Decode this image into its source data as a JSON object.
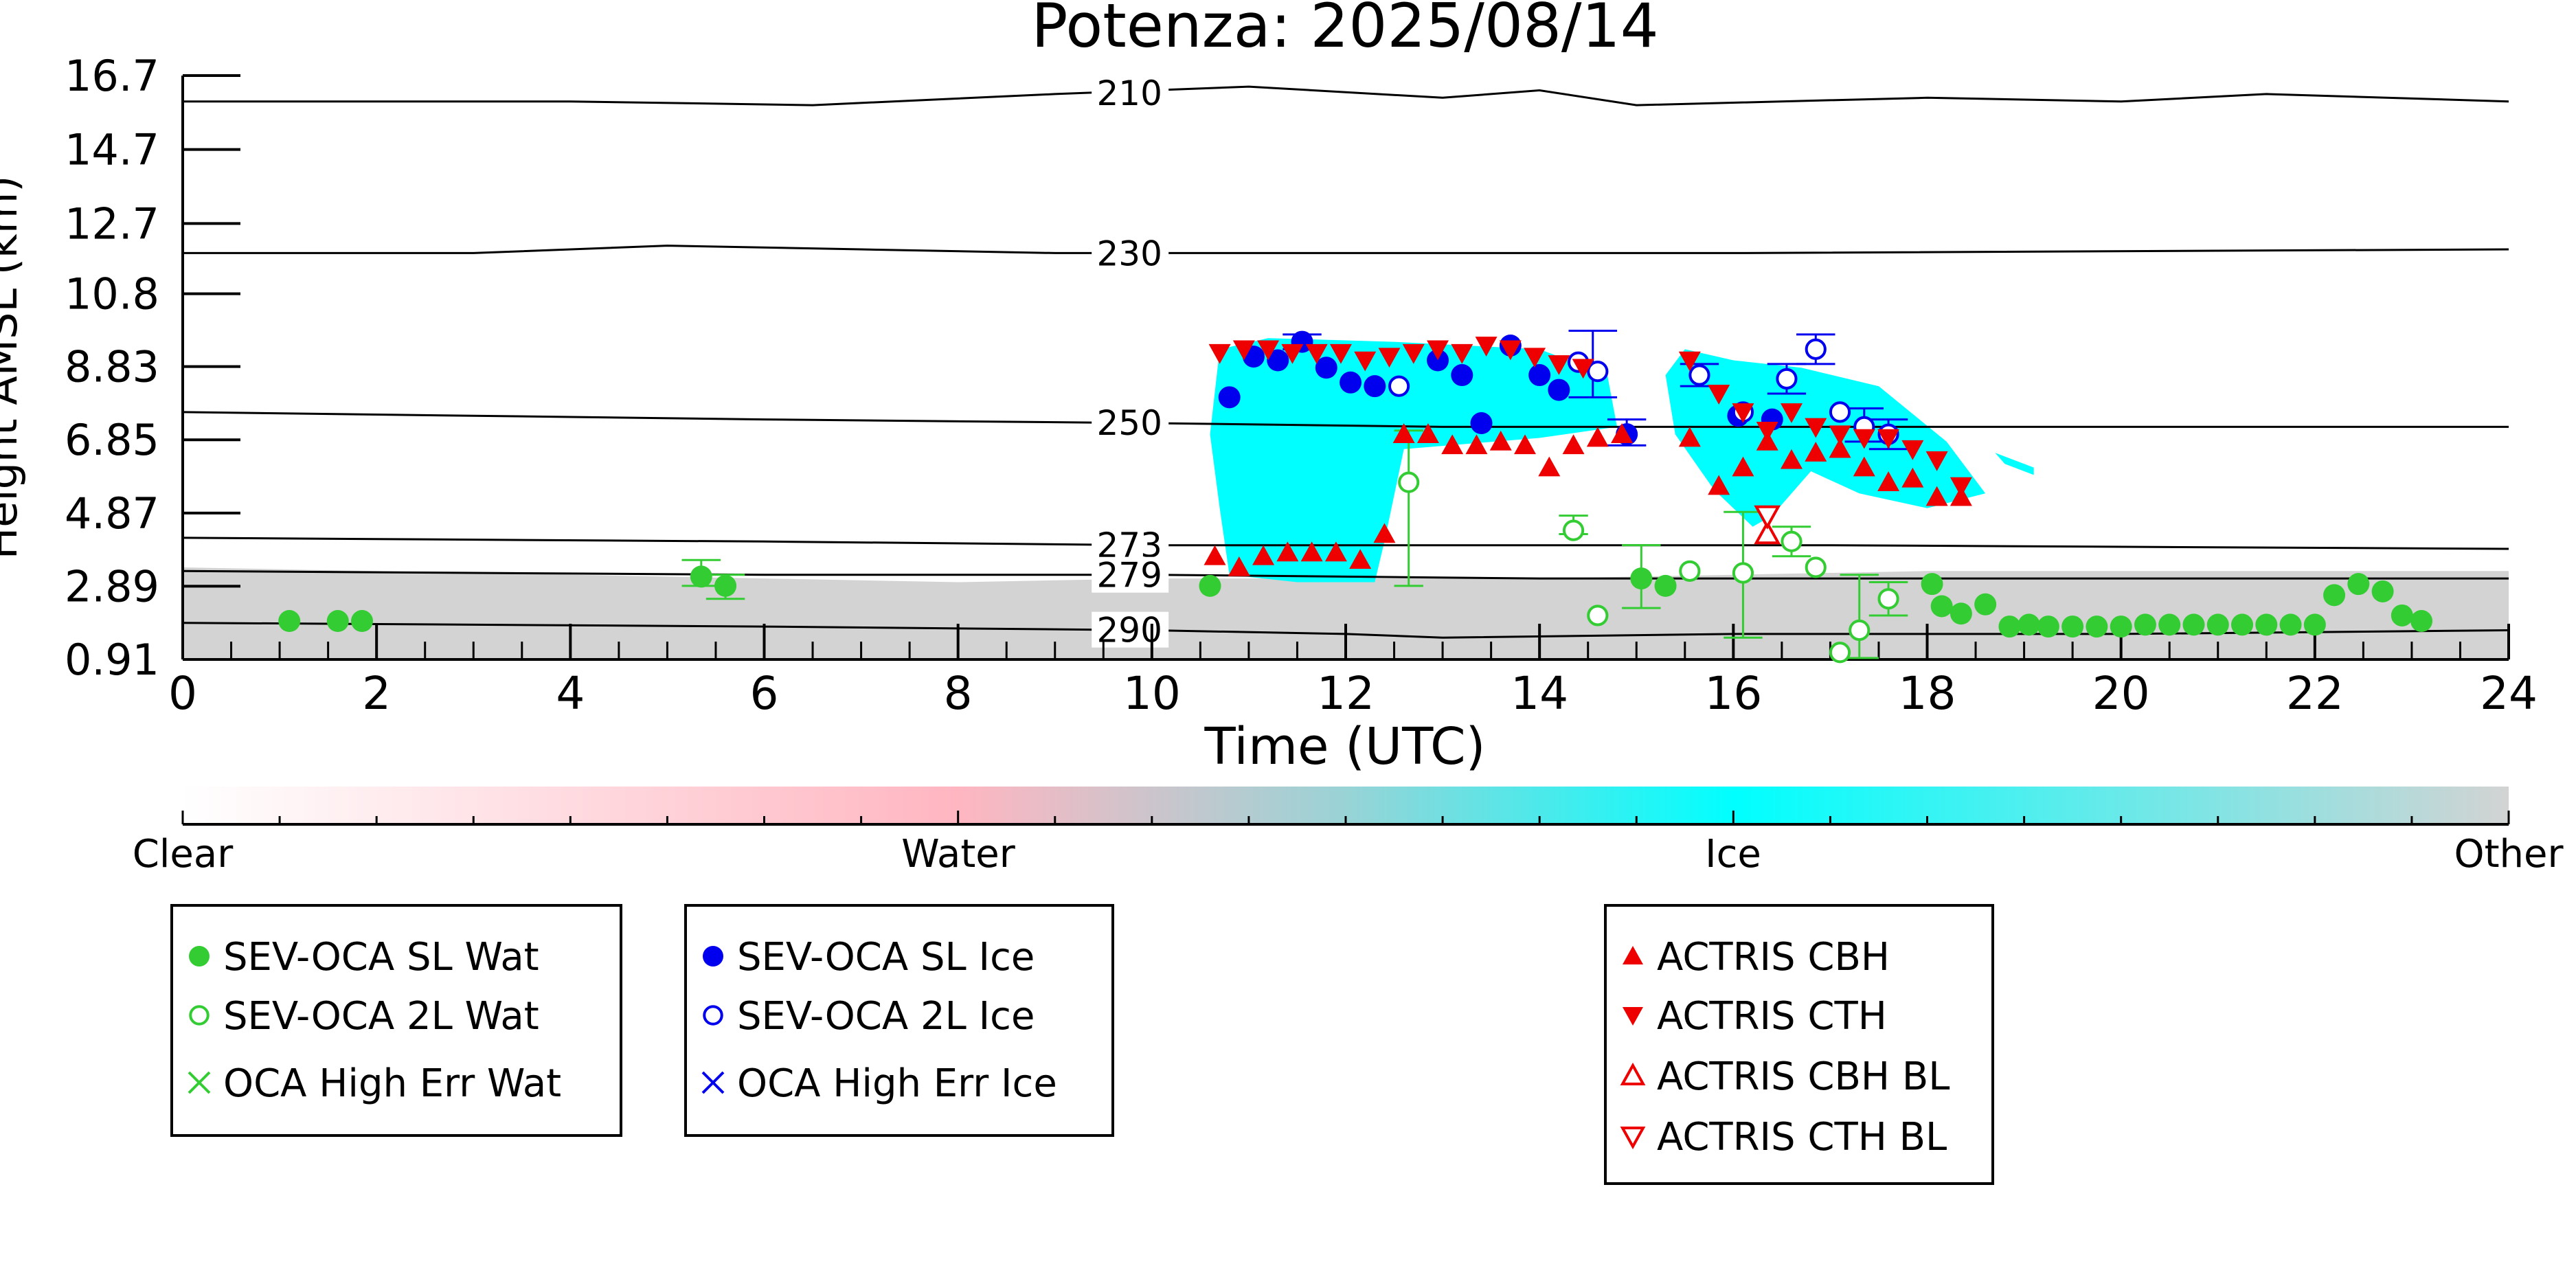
{
  "chart_data": {
    "type": "scatter",
    "title": "Potenza: 2025/08/14",
    "xlabel": "Time (UTC)",
    "ylabel": "Height AMSL (km)",
    "xlim": [
      0,
      24
    ],
    "ylim": [
      0.91,
      16.7
    ],
    "x_ticks": [
      "0",
      "2",
      "4",
      "6",
      "8",
      "10",
      "12",
      "14",
      "16",
      "18",
      "20",
      "22",
      "24"
    ],
    "y_ticks": [
      "0.91",
      "2.89",
      "4.87",
      "6.85",
      "8.83",
      "10.8",
      "12.7",
      "14.7",
      "16.7"
    ],
    "isotherms": [
      {
        "label": "210",
        "points": [
          [
            0,
            16.0
          ],
          [
            4,
            16.0
          ],
          [
            6.5,
            15.9
          ],
          [
            9,
            16.2
          ],
          [
            11,
            16.4
          ],
          [
            13,
            16.1
          ],
          [
            14,
            16.3
          ],
          [
            15,
            15.9
          ],
          [
            18,
            16.1
          ],
          [
            20,
            16.0
          ],
          [
            21.5,
            16.2
          ],
          [
            24,
            16.0
          ]
        ]
      },
      {
        "label": "230",
        "points": [
          [
            0,
            11.9
          ],
          [
            3,
            11.9
          ],
          [
            5,
            12.1
          ],
          [
            7,
            12.0
          ],
          [
            9,
            11.9
          ],
          [
            12,
            11.9
          ],
          [
            16,
            11.9
          ],
          [
            24,
            12.0
          ]
        ]
      },
      {
        "label": "250",
        "points": [
          [
            0,
            7.6
          ],
          [
            6,
            7.4
          ],
          [
            10,
            7.3
          ],
          [
            13,
            7.2
          ],
          [
            16,
            7.2
          ],
          [
            24,
            7.2
          ]
        ]
      },
      {
        "label": "273",
        "points": [
          [
            0,
            4.2
          ],
          [
            6,
            4.1
          ],
          [
            10,
            4.0
          ],
          [
            14,
            4.0
          ],
          [
            17,
            4.0
          ],
          [
            24,
            3.9
          ]
        ]
      },
      {
        "label": "279",
        "points": [
          [
            0,
            3.3
          ],
          [
            6,
            3.2
          ],
          [
            10,
            3.2
          ],
          [
            14,
            3.1
          ],
          [
            17,
            3.1
          ],
          [
            24,
            3.1
          ]
        ]
      },
      {
        "label": "290",
        "points": [
          [
            0,
            1.9
          ],
          [
            6,
            1.8
          ],
          [
            10,
            1.7
          ],
          [
            12,
            1.6
          ],
          [
            13,
            1.5
          ],
          [
            16,
            1.6
          ],
          [
            20,
            1.6
          ],
          [
            24,
            1.7
          ]
        ]
      }
    ],
    "classification": {
      "other_region": [
        [
          0,
          0.91
        ],
        [
          0,
          3.4
        ],
        [
          2,
          3.3
        ],
        [
          4,
          3.2
        ],
        [
          6,
          3.1
        ],
        [
          8,
          3.0
        ],
        [
          10,
          3.1
        ],
        [
          12,
          3.1
        ],
        [
          14,
          3.1
        ],
        [
          16,
          3.2
        ],
        [
          18,
          3.3
        ],
        [
          20,
          3.3
        ],
        [
          22,
          3.3
        ],
        [
          24,
          3.3
        ],
        [
          24,
          0.91
        ]
      ],
      "ice_regions": [
        [
          [
            10.7,
            9.3
          ],
          [
            11.2,
            9.6
          ],
          [
            12.5,
            9.5
          ],
          [
            14,
            9.3
          ],
          [
            14.7,
            8.6
          ],
          [
            14.8,
            7.2
          ],
          [
            14,
            6.9
          ],
          [
            12.6,
            6.6
          ],
          [
            12.4,
            4.1
          ],
          [
            12.3,
            3.0
          ],
          [
            11.5,
            3.0
          ],
          [
            10.8,
            3.2
          ],
          [
            10.7,
            5.0
          ],
          [
            10.6,
            7.0
          ]
        ],
        [
          [
            15.5,
            9.3
          ],
          [
            16,
            9.0
          ],
          [
            16.7,
            8.8
          ],
          [
            17.5,
            8.3
          ],
          [
            18.2,
            6.8
          ],
          [
            18.6,
            5.4
          ],
          [
            18,
            5.0
          ],
          [
            17.3,
            5.4
          ],
          [
            16.8,
            6.0
          ],
          [
            16.4,
            4.8
          ],
          [
            16.2,
            4.5
          ],
          [
            15.8,
            5.5
          ],
          [
            15.4,
            7.0
          ],
          [
            15.3,
            8.6
          ]
        ],
        [
          [
            18.7,
            6.5
          ],
          [
            19.1,
            6.1
          ],
          [
            19.1,
            5.9
          ],
          [
            18.8,
            6.2
          ]
        ]
      ]
    },
    "colorbar": {
      "labels": [
        "Clear",
        "Water",
        "Ice",
        "Other"
      ],
      "colors": [
        "#ffffff",
        "#ffb6c1",
        "#00ffff",
        "#d3d3d3"
      ]
    },
    "series": [
      {
        "name": "SEV-OCA SL Wat",
        "marker": "filled-circle",
        "color": "#33cc33",
        "points": [
          [
            1.1,
            1.95
          ],
          [
            1.6,
            1.95
          ],
          [
            1.85,
            1.95
          ],
          [
            5.35,
            3.15
          ],
          [
            5.6,
            2.9
          ],
          [
            10.6,
            2.9
          ],
          [
            15.05,
            3.1
          ],
          [
            15.3,
            2.9
          ],
          [
            18.05,
            2.95
          ],
          [
            18.15,
            2.35
          ],
          [
            18.35,
            2.15
          ],
          [
            18.6,
            2.4
          ],
          [
            18.85,
            1.8
          ],
          [
            19.05,
            1.85
          ],
          [
            19.25,
            1.8
          ],
          [
            19.5,
            1.8
          ],
          [
            19.75,
            1.8
          ],
          [
            20.0,
            1.8
          ],
          [
            20.25,
            1.85
          ],
          [
            20.5,
            1.85
          ],
          [
            20.75,
            1.85
          ],
          [
            21.0,
            1.85
          ],
          [
            21.25,
            1.85
          ],
          [
            21.5,
            1.85
          ],
          [
            21.75,
            1.85
          ],
          [
            22.0,
            1.85
          ],
          [
            22.2,
            2.65
          ],
          [
            22.45,
            2.95
          ],
          [
            22.7,
            2.75
          ],
          [
            22.9,
            2.1
          ],
          [
            23.1,
            1.95
          ]
        ]
      },
      {
        "name": "SEV-OCA 2L Wat",
        "marker": "open-circle",
        "color": "#33cc33",
        "points": [
          [
            12.65,
            5.7
          ],
          [
            14.35,
            4.4
          ],
          [
            14.6,
            2.1
          ],
          [
            15.55,
            3.3
          ],
          [
            16.1,
            3.25
          ],
          [
            16.6,
            4.1
          ],
          [
            16.85,
            3.4
          ],
          [
            17.1,
            1.1
          ],
          [
            17.3,
            1.7
          ],
          [
            17.6,
            2.55
          ]
        ]
      },
      {
        "name": "OCA High Err Wat",
        "marker": "x",
        "color": "#33cc33",
        "points": []
      },
      {
        "name": "SEV-OCA SL Ice",
        "marker": "filled-circle",
        "color": "#0000ee",
        "points": [
          [
            10.8,
            8.0
          ],
          [
            11.05,
            9.1
          ],
          [
            11.3,
            9.0
          ],
          [
            11.55,
            9.5
          ],
          [
            11.8,
            8.8
          ],
          [
            12.05,
            8.4
          ],
          [
            12.3,
            8.3
          ],
          [
            12.95,
            9.0
          ],
          [
            13.2,
            8.6
          ],
          [
            13.4,
            7.3
          ],
          [
            13.7,
            9.4
          ],
          [
            14.0,
            8.6
          ],
          [
            14.2,
            8.2
          ],
          [
            14.9,
            7.0
          ],
          [
            16.05,
            7.5
          ],
          [
            16.4,
            7.4
          ]
        ]
      },
      {
        "name": "SEV-OCA 2L Ice",
        "marker": "open-circle",
        "color": "#0000ee",
        "points": [
          [
            12.55,
            8.3
          ],
          [
            14.4,
            8.95
          ],
          [
            14.6,
            8.7
          ],
          [
            15.65,
            8.6
          ],
          [
            16.1,
            7.6
          ],
          [
            16.55,
            8.5
          ],
          [
            16.85,
            9.3
          ],
          [
            17.1,
            7.6
          ],
          [
            17.35,
            7.2
          ],
          [
            17.6,
            7.0
          ]
        ]
      },
      {
        "name": "OCA High Err Ice",
        "marker": "x",
        "color": "#0000ee",
        "points": []
      },
      {
        "name": "ACTRIS CBH",
        "marker": "triangle-up",
        "color": "#ee0000",
        "points": [
          [
            10.65,
            3.7
          ],
          [
            10.9,
            3.4
          ],
          [
            11.15,
            3.7
          ],
          [
            11.4,
            3.8
          ],
          [
            11.65,
            3.8
          ],
          [
            11.9,
            3.8
          ],
          [
            12.15,
            3.6
          ],
          [
            12.4,
            4.3
          ],
          [
            12.6,
            7.0
          ],
          [
            12.85,
            7.0
          ],
          [
            13.1,
            6.7
          ],
          [
            13.35,
            6.7
          ],
          [
            13.6,
            6.8
          ],
          [
            13.85,
            6.7
          ],
          [
            14.1,
            6.1
          ],
          [
            14.35,
            6.7
          ],
          [
            14.6,
            6.9
          ],
          [
            14.85,
            7.0
          ],
          [
            15.55,
            6.9
          ],
          [
            15.85,
            5.6
          ],
          [
            16.1,
            6.1
          ],
          [
            16.35,
            6.8
          ],
          [
            16.6,
            6.3
          ],
          [
            16.85,
            6.5
          ],
          [
            17.1,
            6.6
          ],
          [
            17.35,
            6.1
          ],
          [
            17.6,
            5.7
          ],
          [
            17.85,
            5.8
          ],
          [
            18.1,
            5.3
          ],
          [
            18.35,
            5.3
          ]
        ]
      },
      {
        "name": "ACTRIS CTH",
        "marker": "triangle-down",
        "color": "#ee0000",
        "points": [
          [
            10.7,
            9.2
          ],
          [
            10.95,
            9.3
          ],
          [
            11.2,
            9.3
          ],
          [
            11.45,
            9.2
          ],
          [
            11.7,
            9.2
          ],
          [
            11.95,
            9.2
          ],
          [
            12.2,
            9.0
          ],
          [
            12.45,
            9.1
          ],
          [
            12.7,
            9.2
          ],
          [
            12.95,
            9.3
          ],
          [
            13.2,
            9.2
          ],
          [
            13.45,
            9.4
          ],
          [
            13.7,
            9.3
          ],
          [
            13.95,
            9.1
          ],
          [
            14.2,
            8.9
          ],
          [
            14.45,
            8.8
          ],
          [
            15.55,
            9.0
          ],
          [
            15.85,
            8.1
          ],
          [
            16.1,
            7.6
          ],
          [
            16.35,
            7.1
          ],
          [
            16.6,
            7.6
          ],
          [
            16.85,
            7.2
          ],
          [
            17.1,
            7.0
          ],
          [
            17.35,
            6.9
          ],
          [
            17.6,
            6.9
          ],
          [
            17.85,
            6.6
          ],
          [
            18.1,
            6.3
          ],
          [
            18.35,
            5.6
          ]
        ]
      },
      {
        "name": "ACTRIS CBH BL",
        "marker": "open-triangle-up",
        "color": "#ee0000",
        "points": [
          [
            16.35,
            4.3
          ]
        ]
      },
      {
        "name": "ACTRIS CTH BL",
        "marker": "open-triangle-down",
        "color": "#ee0000",
        "points": [
          [
            16.35,
            4.8
          ]
        ]
      }
    ],
    "error_bars": [
      {
        "color": "#33cc33",
        "x": 12.65,
        "y": 5.7,
        "low": 2.9,
        "high": 7.1,
        "cap": 0.15
      },
      {
        "color": "#33cc33",
        "x": 5.35,
        "y": 3.15,
        "low": 2.9,
        "high": 3.6,
        "cap": 0.2
      },
      {
        "color": "#33cc33",
        "x": 5.6,
        "y": 2.9,
        "low": 2.55,
        "high": 3.2,
        "cap": 0.2
      },
      {
        "color": "#33cc33",
        "x": 14.35,
        "y": 4.4,
        "low": 4.3,
        "high": 4.8,
        "cap": 0.15
      },
      {
        "color": "#33cc33",
        "x": 15.05,
        "y": 3.1,
        "low": 2.3,
        "high": 4.0,
        "cap": 0.2
      },
      {
        "color": "#33cc33",
        "x": 16.1,
        "y": 3.25,
        "low": 1.5,
        "high": 4.9,
        "cap": 0.2
      },
      {
        "color": "#33cc33",
        "x": 16.6,
        "y": 4.1,
        "low": 3.7,
        "high": 4.5,
        "cap": 0.2
      },
      {
        "color": "#33cc33",
        "x": 17.3,
        "y": 1.7,
        "low": 0.95,
        "high": 3.2,
        "cap": 0.2
      },
      {
        "color": "#33cc33",
        "x": 17.6,
        "y": 2.55,
        "low": 2.1,
        "high": 3.0,
        "cap": 0.2
      },
      {
        "color": "#0000ee",
        "x": 14.55,
        "y": 8.8,
        "low": 8.0,
        "high": 9.8,
        "cap": 0.25
      },
      {
        "color": "#0000ee",
        "x": 14.9,
        "y": 7.0,
        "low": 6.7,
        "high": 7.4,
        "cap": 0.2
      },
      {
        "color": "#0000ee",
        "x": 15.65,
        "y": 8.6,
        "low": 8.3,
        "high": 8.9,
        "cap": 0.2
      },
      {
        "color": "#0000ee",
        "x": 16.55,
        "y": 8.5,
        "low": 8.1,
        "high": 8.9,
        "cap": 0.2
      },
      {
        "color": "#0000ee",
        "x": 16.85,
        "y": 9.3,
        "low": 8.9,
        "high": 9.7,
        "cap": 0.2
      },
      {
        "color": "#0000ee",
        "x": 17.35,
        "y": 7.2,
        "low": 6.8,
        "high": 7.7,
        "cap": 0.2
      },
      {
        "color": "#0000ee",
        "x": 17.6,
        "y": 7.0,
        "low": 6.6,
        "high": 7.4,
        "cap": 0.2
      },
      {
        "color": "#0000ee",
        "x": 11.55,
        "y": 9.5,
        "low": 9.3,
        "high": 9.7,
        "cap": 0.2
      }
    ],
    "legend_groups": [
      [
        "SEV-OCA SL Wat",
        "SEV-OCA 2L Wat",
        "OCA High Err Wat"
      ],
      [
        "SEV-OCA SL Ice",
        "SEV-OCA 2L Ice",
        "OCA High Err Ice"
      ],
      [
        "ACTRIS CBH",
        "ACTRIS CTH",
        "ACTRIS CBH BL",
        "ACTRIS CTH BL"
      ]
    ]
  }
}
